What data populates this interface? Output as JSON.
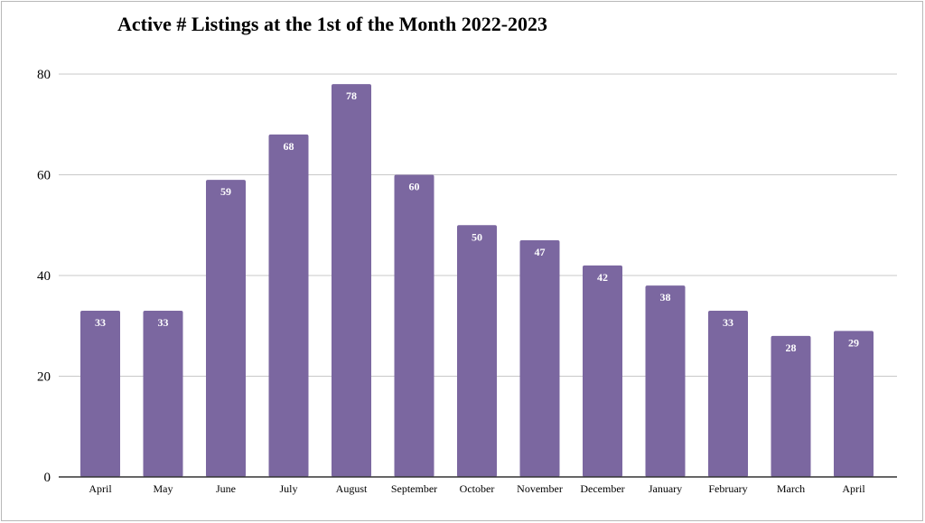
{
  "chart_data": {
    "type": "bar",
    "title": "Active # Listings at the 1st of the Month 2022-2023",
    "xlabel": "",
    "ylabel": "",
    "categories": [
      "April",
      "May",
      "June",
      "July",
      "August",
      "September",
      "October",
      "November",
      "December",
      "January",
      "February",
      "March",
      "April"
    ],
    "values": [
      33,
      33,
      59,
      68,
      78,
      60,
      50,
      47,
      42,
      38,
      33,
      28,
      29
    ],
    "ylim": [
      0,
      80
    ],
    "yticks": [
      "0",
      "20",
      "40",
      "60",
      "80"
    ],
    "grid": true,
    "legend": "none",
    "colors": {
      "bar": "#7b67a0",
      "grid": "#c8c8c8",
      "axis": "#333333",
      "data_label": "#ffffff"
    }
  }
}
